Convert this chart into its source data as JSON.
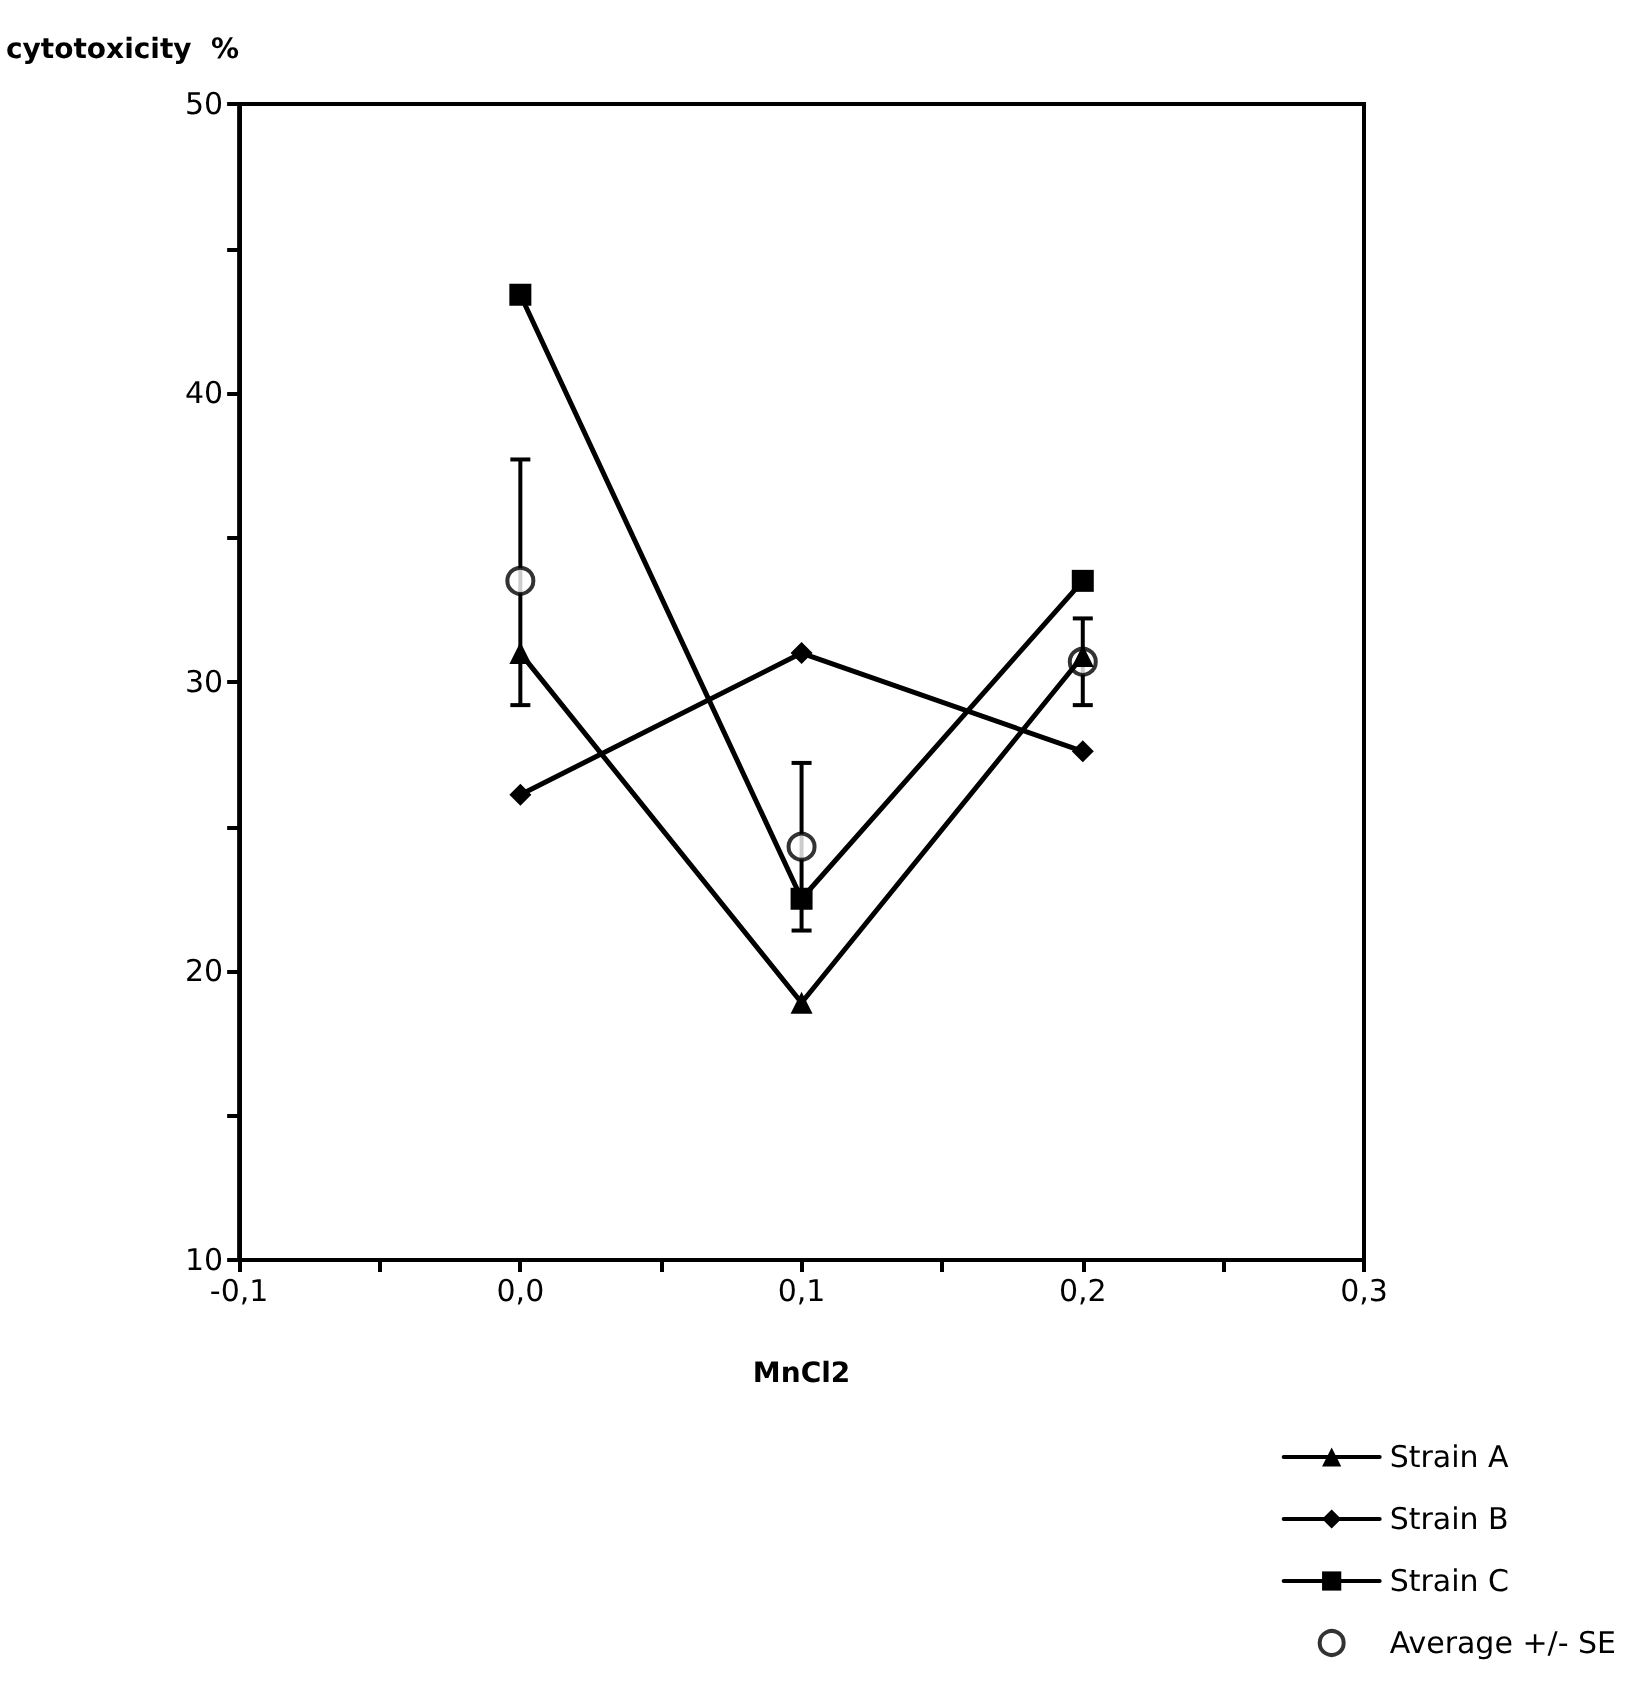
{
  "chart_data": {
    "type": "line",
    "xlabel": "MnCl2",
    "ylabel": "cytotoxicity  %",
    "x": [
      0.0,
      0.1,
      0.2
    ],
    "series": [
      {
        "name": "Strain A",
        "color": "#000000",
        "marker": "triangle",
        "values": [
          31.0,
          18.9,
          30.9
        ]
      },
      {
        "name": "Strain B",
        "color": "#000000",
        "marker": "diamond",
        "values": [
          26.1,
          31.0,
          27.6
        ]
      },
      {
        "name": "Strain C",
        "color": "#000000",
        "marker": "square",
        "values": [
          43.4,
          22.5,
          33.5
        ]
      },
      {
        "name": "Average +/- SE",
        "type": "scatter",
        "color": "#000000",
        "marker": "circle",
        "values": [
          33.5,
          24.3,
          30.7
        ],
        "errors": [
          [
            29.2,
            37.7
          ],
          [
            21.4,
            27.2
          ],
          [
            29.2,
            32.2
          ]
        ]
      }
    ],
    "xlim": [
      -0.1,
      0.3
    ],
    "xticks": [
      {
        "value": -0.1,
        "label": "-0,1"
      },
      {
        "value": -0.05,
        "label": null
      },
      {
        "value": 0.0,
        "label": "0,0"
      },
      {
        "value": 0.05,
        "label": null
      },
      {
        "value": 0.1,
        "label": "0,1"
      },
      {
        "value": 0.15,
        "label": null
      },
      {
        "value": 0.2,
        "label": "0,2"
      },
      {
        "value": 0.25,
        "label": null
      },
      {
        "value": 0.3,
        "label": "0,3"
      }
    ],
    "ylim": [
      10,
      50
    ],
    "yticks": [
      10,
      {
        "value": 15,
        "label": null
      },
      20,
      {
        "value": 25,
        "label": null
      },
      30,
      {
        "value": 35,
        "label": null
      },
      40,
      {
        "value": 45,
        "label": null
      },
      50
    ],
    "grid": false,
    "legend": "bottom right",
    "line_style": "solid"
  }
}
